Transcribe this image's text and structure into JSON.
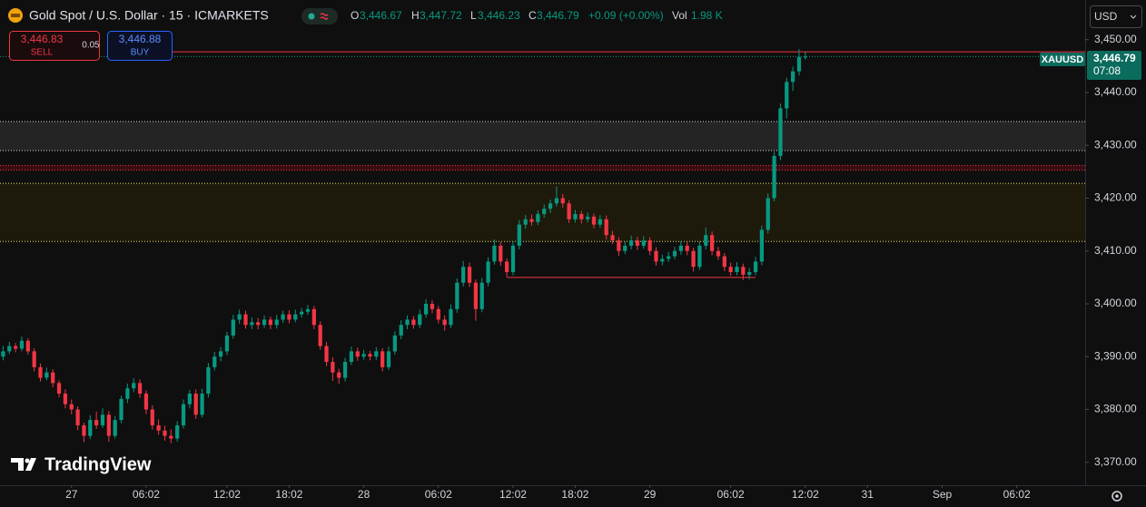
{
  "header": {
    "symbol": "Gold Spot / U.S. Dollar · 15 · ICMARKETS",
    "o_label": "O",
    "o": "3,446.67",
    "h_label": "H",
    "h": "3,447.72",
    "l_label": "L",
    "l": "3,446.23",
    "c_label": "C",
    "c": "3,446.79",
    "change": "+0.09 (+0.00%)",
    "vol_label": "Vol",
    "vol": "1.98 K",
    "currency": "USD"
  },
  "trade": {
    "sell_price": "3,446.83",
    "sell": "SELL",
    "spread": "0.05",
    "buy_price": "3,446.88",
    "buy": "BUY"
  },
  "price_tag": {
    "symbol": "XAUUSD",
    "price": "3,446.79",
    "countdown": "07:08"
  },
  "branding": "TradingView",
  "chart_data": {
    "type": "candlestick",
    "up_color": "#089981",
    "down_color": "#f23645",
    "grid": false,
    "ylim": [
      3366,
      3451.5
    ],
    "yticks": [
      {
        "value": 3370,
        "label": "3,370.00"
      },
      {
        "value": 3380,
        "label": "3,380.00"
      },
      {
        "value": 3390,
        "label": "3,390.00"
      },
      {
        "value": 3400,
        "label": "3,400.00"
      },
      {
        "value": 3410,
        "label": "3,410.00"
      },
      {
        "value": 3420,
        "label": "3,420.00"
      },
      {
        "value": 3430,
        "label": "3,430.00"
      },
      {
        "value": 3440,
        "label": "3,440.00"
      },
      {
        "value": 3450,
        "label": "3,450.00"
      }
    ],
    "xlim": [
      -0.5,
      174
    ],
    "xticks": [
      {
        "value": 11,
        "label": "27"
      },
      {
        "value": 23,
        "label": "06:02"
      },
      {
        "value": 36,
        "label": "12:02"
      },
      {
        "value": 46,
        "label": "18:02"
      },
      {
        "value": 58,
        "label": "28"
      },
      {
        "value": 70,
        "label": "06:02"
      },
      {
        "value": 82,
        "label": "12:02"
      },
      {
        "value": 92,
        "label": "18:02"
      },
      {
        "value": 104,
        "label": "29"
      },
      {
        "value": 117,
        "label": "06:02"
      },
      {
        "value": 129,
        "label": "12:02"
      },
      {
        "value": 139,
        "label": "31"
      },
      {
        "value": 151,
        "label": "Sep"
      },
      {
        "value": 163,
        "label": "06:02"
      }
    ],
    "zones": [
      {
        "from": 3434.5,
        "to": 3429,
        "fill": "#242424",
        "border": "#d1d4dc"
      },
      {
        "from": 3426.2,
        "to": 3425.3,
        "fill": "#3a0d12",
        "border": "#f23645"
      },
      {
        "from": 3422.8,
        "to": 3411.8,
        "fill": "#1d1a0b",
        "border": "#e8df6a"
      }
    ],
    "levels": [
      {
        "price": 3447.7,
        "from_index": 27,
        "to_index": 174,
        "color": "#f23645"
      },
      {
        "price": 3405,
        "from_index": 81,
        "to_index": 121,
        "color": "#f23645"
      }
    ],
    "candles": [
      [
        3390,
        3392,
        3389.3,
        3391
      ],
      [
        3391,
        3392.8,
        3390.5,
        3392
      ],
      [
        3392,
        3392.6,
        3390.8,
        3391.5
      ],
      [
        3391.5,
        3393.8,
        3391,
        3393
      ],
      [
        3393,
        3393.5,
        3390.4,
        3391
      ],
      [
        3391,
        3391.6,
        3387.2,
        3388
      ],
      [
        3388,
        3388.7,
        3385.3,
        3386
      ],
      [
        3386,
        3387.9,
        3385.5,
        3387
      ],
      [
        3387,
        3387.6,
        3384.2,
        3385
      ],
      [
        3385,
        3385.5,
        3382.3,
        3383
      ],
      [
        3383,
        3383.8,
        3380.2,
        3381
      ],
      [
        3381,
        3381.9,
        3379.1,
        3380
      ],
      [
        3380,
        3380.6,
        3376.1,
        3377
      ],
      [
        3377,
        3377.5,
        3373.8,
        3375
      ],
      [
        3375,
        3378.9,
        3374.4,
        3378
      ],
      [
        3378,
        3379.6,
        3376.3,
        3377
      ],
      [
        3377,
        3380.2,
        3376.5,
        3379
      ],
      [
        3379,
        3379.7,
        3373.9,
        3375
      ],
      [
        3375,
        3378.8,
        3374.5,
        3378
      ],
      [
        3378,
        3382.6,
        3377.4,
        3382
      ],
      [
        3382,
        3384.9,
        3381.2,
        3384
      ],
      [
        3384,
        3385.9,
        3383.3,
        3385
      ],
      [
        3385,
        3385.7,
        3382.2,
        3383
      ],
      [
        3383,
        3383.6,
        3379.1,
        3380
      ],
      [
        3380,
        3380.8,
        3376.2,
        3377
      ],
      [
        3377,
        3378.1,
        3375.2,
        3376
      ],
      [
        3376,
        3376.9,
        3374.1,
        3375
      ],
      [
        3375,
        3376.2,
        3373.6,
        3374.5
      ],
      [
        3374.5,
        3377.8,
        3373.9,
        3377
      ],
      [
        3377,
        3381.9,
        3376.4,
        3381
      ],
      [
        3381,
        3383.7,
        3380.2,
        3383
      ],
      [
        3383,
        3383.8,
        3378.2,
        3379
      ],
      [
        3379,
        3383.9,
        3378.5,
        3383
      ],
      [
        3383,
        3388.8,
        3382.3,
        3388
      ],
      [
        3388,
        3390.9,
        3387.4,
        3390
      ],
      [
        3390,
        3391.8,
        3389.1,
        3391
      ],
      [
        3391,
        3394.7,
        3390.3,
        3394
      ],
      [
        3394,
        3397.9,
        3393.4,
        3397
      ],
      [
        3397,
        3398.9,
        3396.2,
        3398
      ],
      [
        3398,
        3398.7,
        3395.3,
        3396
      ],
      [
        3396,
        3397.4,
        3395.2,
        3396.5
      ],
      [
        3396.5,
        3397.3,
        3395.2,
        3396
      ],
      [
        3396,
        3397.8,
        3395.4,
        3397
      ],
      [
        3397,
        3397.6,
        3395.2,
        3396
      ],
      [
        3396,
        3397.9,
        3395.3,
        3397
      ],
      [
        3397,
        3398.7,
        3396.4,
        3398
      ],
      [
        3398,
        3398.8,
        3396.3,
        3397
      ],
      [
        3397,
        3398.9,
        3396.5,
        3398
      ],
      [
        3398,
        3399.2,
        3397.4,
        3398.5
      ],
      [
        3398.5,
        3399.8,
        3397.9,
        3399
      ],
      [
        3399,
        3399.6,
        3395.2,
        3396
      ],
      [
        3396,
        3396.7,
        3391.3,
        3392
      ],
      [
        3392,
        3392.8,
        3388.2,
        3389
      ],
      [
        3389,
        3389.9,
        3385.4,
        3387
      ],
      [
        3387,
        3387.7,
        3384.9,
        3386
      ],
      [
        3386,
        3389.8,
        3385.3,
        3389
      ],
      [
        3389,
        3391.9,
        3388.4,
        3391
      ],
      [
        3391,
        3391.7,
        3389.2,
        3390
      ],
      [
        3390,
        3391.3,
        3389.4,
        3390.5
      ],
      [
        3390.5,
        3391.1,
        3389.3,
        3390
      ],
      [
        3390,
        3391.8,
        3389.4,
        3391
      ],
      [
        3391,
        3391.6,
        3387.2,
        3388
      ],
      [
        3388,
        3391.9,
        3387.5,
        3391
      ],
      [
        3391,
        3394.8,
        3390.4,
        3394
      ],
      [
        3394,
        3396.9,
        3393.3,
        3396
      ],
      [
        3396,
        3397.8,
        3395.2,
        3397
      ],
      [
        3397,
        3397.7,
        3395.3,
        3396
      ],
      [
        3396,
        3398.9,
        3395.4,
        3398
      ],
      [
        3398,
        3400.9,
        3397.4,
        3400
      ],
      [
        3400,
        3400.7,
        3398.2,
        3399
      ],
      [
        3399,
        3399.6,
        3396.3,
        3397
      ],
      [
        3397,
        3397.8,
        3394.9,
        3396
      ],
      [
        3396,
        3399.9,
        3395.4,
        3399
      ],
      [
        3399,
        3404.8,
        3398.3,
        3404
      ],
      [
        3404,
        3408.1,
        3403.3,
        3407
      ],
      [
        3407,
        3407.8,
        3403.2,
        3404
      ],
      [
        3404,
        3404.6,
        3396.8,
        3399
      ],
      [
        3399,
        3404.9,
        3398.4,
        3404
      ],
      [
        3404,
        3408.8,
        3403.3,
        3408
      ],
      [
        3408,
        3412.2,
        3407.4,
        3411
      ],
      [
        3411,
        3411.7,
        3407.2,
        3408
      ],
      [
        3408,
        3408.6,
        3405.1,
        3406
      ],
      [
        3406,
        3411.8,
        3405.4,
        3411
      ],
      [
        3411,
        3415.9,
        3410.3,
        3415
      ],
      [
        3415,
        3416.8,
        3414.2,
        3416
      ],
      [
        3416,
        3416.9,
        3414.8,
        3415.5
      ],
      [
        3415.5,
        3417.7,
        3414.9,
        3417
      ],
      [
        3417,
        3418.8,
        3416.3,
        3418
      ],
      [
        3418,
        3419.7,
        3417.2,
        3419
      ],
      [
        3419,
        3422.2,
        3418.4,
        3420
      ],
      [
        3420,
        3420.8,
        3418.2,
        3419
      ],
      [
        3419,
        3419.6,
        3415.3,
        3416
      ],
      [
        3416,
        3417.8,
        3415.4,
        3417
      ],
      [
        3417,
        3417.6,
        3415.2,
        3416
      ],
      [
        3416,
        3417.3,
        3415.4,
        3416.5
      ],
      [
        3416.5,
        3417.1,
        3414.3,
        3415
      ],
      [
        3415,
        3416.8,
        3414.4,
        3416
      ],
      [
        3416,
        3416.7,
        3412.2,
        3413
      ],
      [
        3413,
        3413.8,
        3411.3,
        3412
      ],
      [
        3412,
        3412.6,
        3409.1,
        3410
      ],
      [
        3410,
        3411.8,
        3409.4,
        3411
      ],
      [
        3411,
        3412.9,
        3410.3,
        3412
      ],
      [
        3412,
        3412.7,
        3410.2,
        3411
      ],
      [
        3411,
        3412.8,
        3410.4,
        3412
      ],
      [
        3412,
        3412.6,
        3409.2,
        3410
      ],
      [
        3410,
        3410.7,
        3407.2,
        3408
      ],
      [
        3408,
        3409.3,
        3407.3,
        3408.5
      ],
      [
        3408.5,
        3409.8,
        3407.9,
        3409
      ],
      [
        3409,
        3410.8,
        3408.4,
        3410
      ],
      [
        3410,
        3411.9,
        3409.3,
        3411
      ],
      [
        3411,
        3411.7,
        3409.2,
        3410
      ],
      [
        3410,
        3410.6,
        3406.1,
        3407
      ],
      [
        3407,
        3411.8,
        3406.4,
        3411
      ],
      [
        3411,
        3414.4,
        3410.3,
        3413
      ],
      [
        3413,
        3413.7,
        3409.2,
        3410
      ],
      [
        3410,
        3410.8,
        3408.3,
        3409
      ],
      [
        3409,
        3409.6,
        3406.2,
        3407
      ],
      [
        3407,
        3407.8,
        3405.3,
        3406
      ],
      [
        3406,
        3407.9,
        3405.4,
        3407
      ],
      [
        3407,
        3407.6,
        3404.5,
        3405.5
      ],
      [
        3405.5,
        3406.8,
        3404.6,
        3406
      ],
      [
        3406,
        3408.9,
        3405.4,
        3408
      ],
      [
        3408,
        3414.8,
        3407.3,
        3414
      ],
      [
        3414,
        3420.9,
        3413.3,
        3420
      ],
      [
        3420,
        3428.8,
        3419.4,
        3428
      ],
      [
        3428,
        3437.9,
        3427.2,
        3437
      ],
      [
        3437,
        3442.8,
        3435.1,
        3442
      ],
      [
        3442,
        3444.9,
        3440.3,
        3444
      ],
      [
        3444,
        3448.2,
        3443.2,
        3446.7
      ],
      [
        3446.67,
        3447.72,
        3446.23,
        3446.79
      ]
    ]
  }
}
